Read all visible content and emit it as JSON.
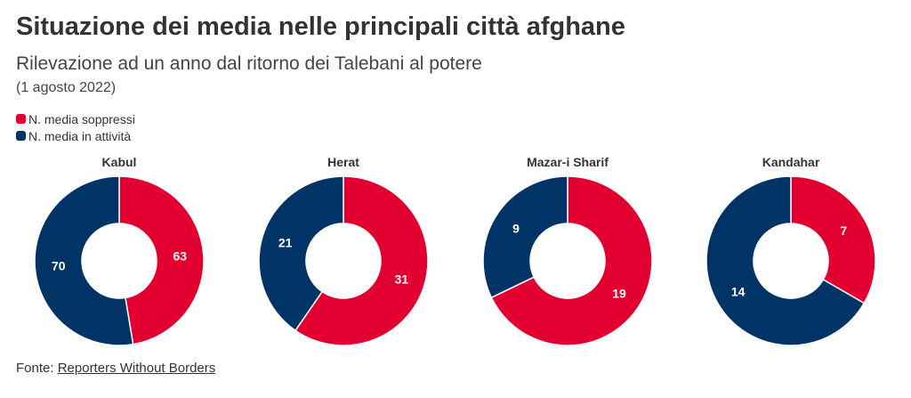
{
  "title": "Situazione dei media nelle principali città afghane",
  "subtitle": "Rilevazione ad un anno dal ritorno dei Talebani al potere",
  "date": "(1 agosto 2022)",
  "source": {
    "prefix": "Fonte:",
    "link_text": "Reporters Without Borders"
  },
  "colors": {
    "suppressed": "#e20030",
    "active": "#003466"
  },
  "chart_data": {
    "type": "pie",
    "variant": "donut",
    "legend": [
      "N. media soppressi",
      "N. media in attività"
    ],
    "legend_placement": "top-left",
    "charts": [
      {
        "city": "Kabul",
        "suppressed": 63,
        "active": 70
      },
      {
        "city": "Herat",
        "suppressed": 31,
        "active": 21
      },
      {
        "city": "Mazar-i Sharif",
        "suppressed": 19,
        "active": 9
      },
      {
        "city": "Kandahar",
        "suppressed": 7,
        "active": 14
      }
    ]
  }
}
